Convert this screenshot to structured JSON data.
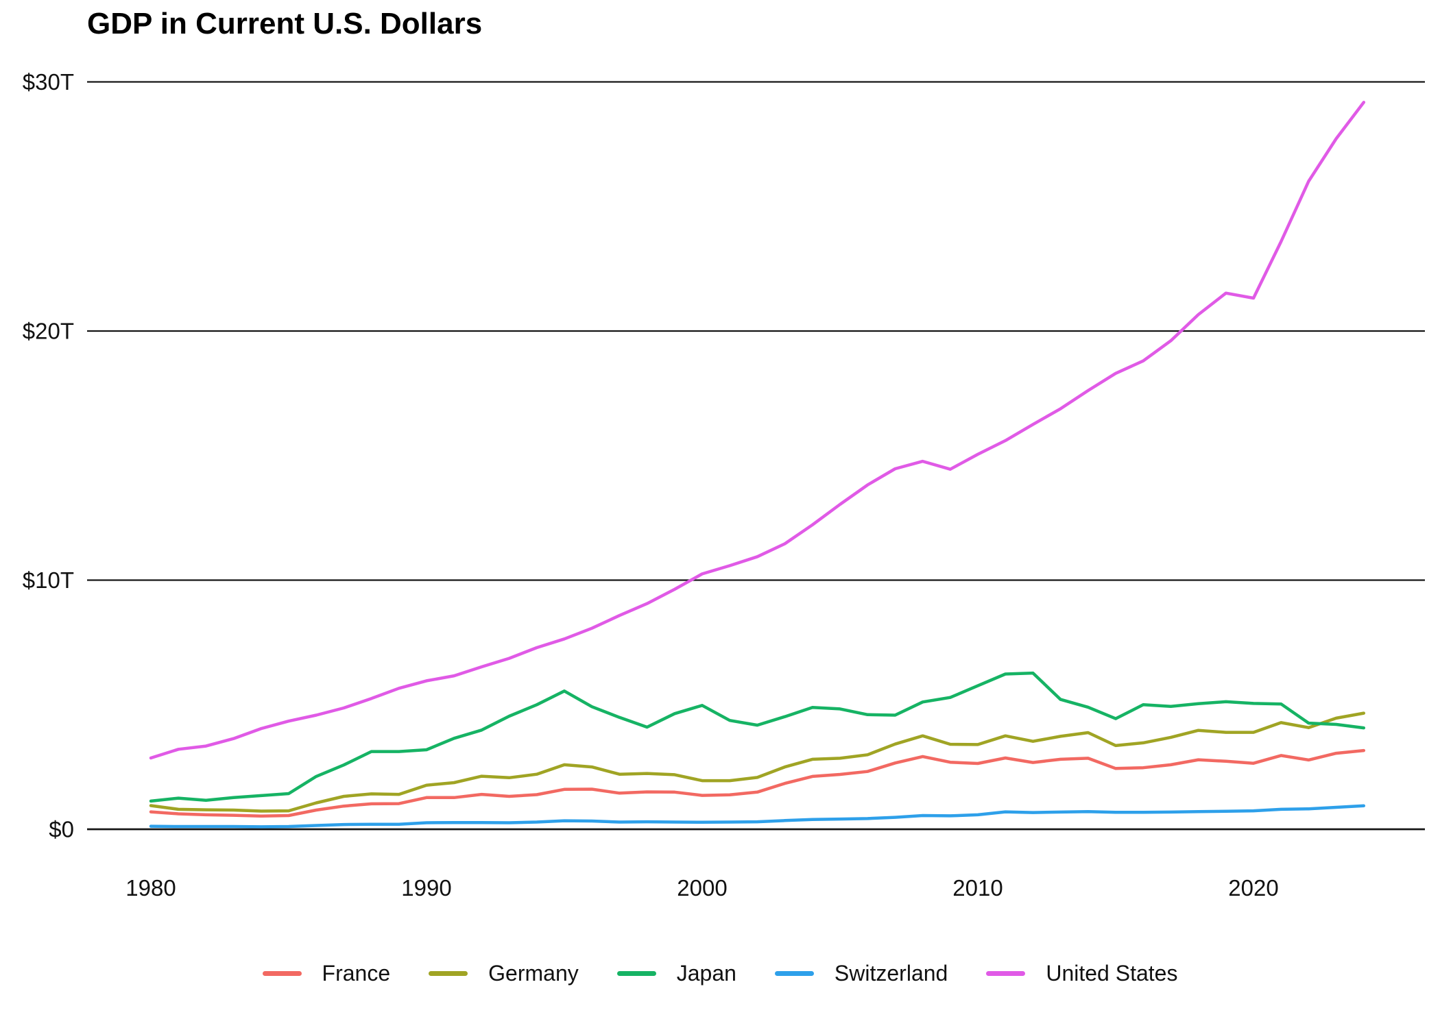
{
  "chart_data": {
    "type": "line",
    "title": "GDP in Current U.S. Dollars",
    "xlabel": "",
    "ylabel": "",
    "xlim": [
      1980,
      2024
    ],
    "ylim": [
      0,
      30
    ],
    "grid": "horizontal",
    "legend_position": "bottom",
    "x_ticks": [
      1980,
      1990,
      2000,
      2010,
      2020
    ],
    "y_ticks": [
      {
        "value": 0,
        "label": "$0"
      },
      {
        "value": 10,
        "label": "$10T"
      },
      {
        "value": 20,
        "label": "$20T"
      },
      {
        "value": 30,
        "label": "$30T"
      }
    ],
    "x": [
      1980,
      1981,
      1982,
      1983,
      1984,
      1985,
      1986,
      1987,
      1988,
      1989,
      1990,
      1991,
      1992,
      1993,
      1994,
      1995,
      1996,
      1997,
      1998,
      1999,
      2000,
      2001,
      2002,
      2003,
      2004,
      2005,
      2006,
      2007,
      2008,
      2009,
      2010,
      2011,
      2012,
      2013,
      2014,
      2015,
      2016,
      2017,
      2018,
      2019,
      2020,
      2021,
      2022,
      2023,
      2024
    ],
    "series": [
      {
        "name": "France",
        "color": "#F26962",
        "values": [
          0.7,
          0.62,
          0.58,
          0.56,
          0.53,
          0.55,
          0.77,
          0.93,
          1.02,
          1.03,
          1.27,
          1.27,
          1.4,
          1.32,
          1.39,
          1.6,
          1.61,
          1.45,
          1.5,
          1.49,
          1.36,
          1.38,
          1.49,
          1.84,
          2.12,
          2.2,
          2.32,
          2.66,
          2.92,
          2.69,
          2.64,
          2.86,
          2.68,
          2.81,
          2.85,
          2.44,
          2.47,
          2.59,
          2.79,
          2.73,
          2.65,
          2.96,
          2.78,
          3.05,
          3.16
        ]
      },
      {
        "name": "Germany",
        "color": "#A0A424",
        "values": [
          0.95,
          0.8,
          0.78,
          0.77,
          0.73,
          0.74,
          1.06,
          1.32,
          1.42,
          1.4,
          1.77,
          1.87,
          2.13,
          2.07,
          2.21,
          2.59,
          2.5,
          2.21,
          2.24,
          2.19,
          1.95,
          1.95,
          2.08,
          2.5,
          2.81,
          2.85,
          2.99,
          3.42,
          3.75,
          3.41,
          3.4,
          3.75,
          3.53,
          3.73,
          3.88,
          3.36,
          3.47,
          3.69,
          3.97,
          3.89,
          3.89,
          4.28,
          4.08,
          4.46,
          4.66
        ]
      },
      {
        "name": "Japan",
        "color": "#16B364",
        "values": [
          1.13,
          1.25,
          1.16,
          1.27,
          1.35,
          1.43,
          2.12,
          2.58,
          3.12,
          3.12,
          3.19,
          3.65,
          3.98,
          4.54,
          5.0,
          5.55,
          4.92,
          4.49,
          4.1,
          4.64,
          4.97,
          4.37,
          4.18,
          4.52,
          4.89,
          4.83,
          4.6,
          4.58,
          5.11,
          5.29,
          5.76,
          6.23,
          6.27,
          5.21,
          4.9,
          4.44,
          5.0,
          4.93,
          5.04,
          5.12,
          5.05,
          5.03,
          4.26,
          4.21,
          4.07
        ]
      },
      {
        "name": "Switzerland",
        "color": "#2EA0EA",
        "values": [
          0.12,
          0.11,
          0.11,
          0.11,
          0.1,
          0.11,
          0.15,
          0.19,
          0.2,
          0.2,
          0.26,
          0.27,
          0.27,
          0.26,
          0.29,
          0.34,
          0.33,
          0.29,
          0.3,
          0.29,
          0.28,
          0.29,
          0.3,
          0.35,
          0.39,
          0.41,
          0.43,
          0.48,
          0.55,
          0.54,
          0.58,
          0.7,
          0.67,
          0.69,
          0.71,
          0.68,
          0.68,
          0.69,
          0.71,
          0.72,
          0.74,
          0.8,
          0.82,
          0.88,
          0.94
        ]
      },
      {
        "name": "United States",
        "color": "#E05AE6",
        "values": [
          2.86,
          3.21,
          3.34,
          3.64,
          4.04,
          4.34,
          4.58,
          4.87,
          5.25,
          5.66,
          5.96,
          6.16,
          6.52,
          6.86,
          7.29,
          7.64,
          8.07,
          8.58,
          9.06,
          9.63,
          10.25,
          10.58,
          10.94,
          11.46,
          12.22,
          13.04,
          13.82,
          14.47,
          14.77,
          14.45,
          15.05,
          15.6,
          16.25,
          16.88,
          17.61,
          18.3,
          18.8,
          19.61,
          20.66,
          21.52,
          21.32,
          23.59,
          26.01,
          27.72,
          29.18
        ]
      }
    ]
  }
}
